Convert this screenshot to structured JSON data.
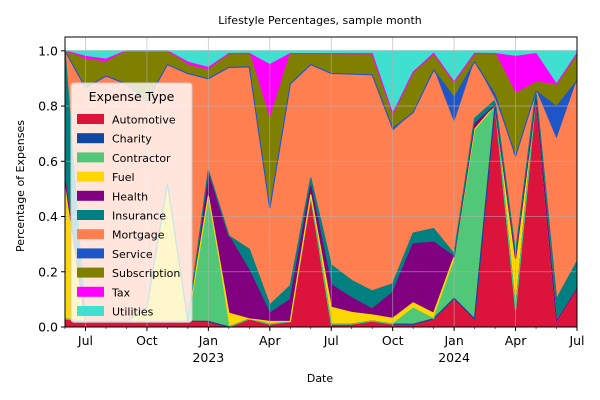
{
  "chart_data": {
    "type": "area",
    "stacked": true,
    "normalized": true,
    "title": "Lifestyle Percentages, sample month",
    "xlabel": "Date",
    "ylabel": "Percentage of Expenses",
    "ylim": [
      0,
      1.05
    ],
    "yticks": [
      "0.0",
      "0.2",
      "0.4",
      "0.6",
      "0.8",
      "1.0"
    ],
    "xlim": [
      "2022-06",
      "2024-07"
    ],
    "x": [
      "2022-06",
      "2022-07",
      "2022-08",
      "2022-09",
      "2022-10",
      "2022-11",
      "2022-12",
      "2023-01",
      "2023-02",
      "2023-03",
      "2023-04",
      "2023-05",
      "2023-06",
      "2023-07",
      "2023-08",
      "2023-09",
      "2023-10",
      "2023-11",
      "2023-12",
      "2024-01",
      "2024-02",
      "2024-03",
      "2024-04",
      "2024-05",
      "2024-06",
      "2024-07"
    ],
    "xticks": [
      {
        "at": "2022-07",
        "label": "Jul",
        "year": ""
      },
      {
        "at": "2022-10",
        "label": "Oct",
        "year": ""
      },
      {
        "at": "2023-01",
        "label": "Jan",
        "year": "2023"
      },
      {
        "at": "2023-04",
        "label": "Apr",
        "year": ""
      },
      {
        "at": "2023-07",
        "label": "Jul",
        "year": ""
      },
      {
        "at": "2023-10",
        "label": "Oct",
        "year": ""
      },
      {
        "at": "2024-01",
        "label": "Jan",
        "year": "2024"
      },
      {
        "at": "2024-04",
        "label": "Apr",
        "year": ""
      },
      {
        "at": "2024-07",
        "label": "Jul",
        "year": ""
      }
    ],
    "grid": true,
    "legend": {
      "title": "Expense Type",
      "placement": "center-left"
    },
    "series": [
      {
        "name": "Automotive",
        "color": "#dc143c",
        "values": [
          0.03,
          0.02,
          0.02,
          0.02,
          0.02,
          0.02,
          0.02,
          0.02,
          0.0,
          0.03,
          0.01,
          0.02,
          0.47,
          0.01,
          0.01,
          0.02,
          0.01,
          0.01,
          0.03,
          0.11,
          0.03,
          0.81,
          0.06,
          0.8,
          0.02,
          0.14
        ]
      },
      {
        "name": "Charity",
        "color": "#0d47a1",
        "values": [
          0.0,
          0.0,
          0.0,
          0.0,
          0.0,
          0.0,
          0.0,
          0.0,
          0.0,
          0.0,
          0.0,
          0.0,
          0.0,
          0.0,
          0.0,
          0.0,
          0.0,
          0.0,
          0.0,
          0.0,
          0.0,
          0.0,
          0.0,
          0.0,
          0.0,
          0.0
        ]
      },
      {
        "name": "Contractor",
        "color": "#50c878",
        "values": [
          0.0,
          0.0,
          0.0,
          0.0,
          0.0,
          0.0,
          0.0,
          0.45,
          0.0,
          0.0,
          0.0,
          0.0,
          0.0,
          0.0,
          0.0,
          0.0,
          0.0,
          0.06,
          0.0,
          0.14,
          0.7,
          0.0,
          0.0,
          0.0,
          0.0,
          0.0
        ]
      },
      {
        "name": "Fuel",
        "color": "#ffd700",
        "values": [
          0.52,
          0.0,
          0.0,
          0.0,
          0.05,
          0.5,
          0.0,
          0.0,
          0.05,
          0.0,
          0.01,
          0.0,
          0.01,
          0.06,
          0.04,
          0.02,
          0.02,
          0.02,
          0.02,
          0.02,
          0.0,
          0.0,
          0.18,
          0.0,
          0.0,
          0.0
        ]
      },
      {
        "name": "Health",
        "color": "#800080",
        "values": [
          0.0,
          0.0,
          0.0,
          0.0,
          0.0,
          0.0,
          0.0,
          0.09,
          0.28,
          0.18,
          0.03,
          0.08,
          0.03,
          0.08,
          0.05,
          0.02,
          0.09,
          0.22,
          0.26,
          0.0,
          0.02,
          0.0,
          0.0,
          0.0,
          0.0,
          0.0
        ]
      },
      {
        "name": "Insurance",
        "color": "#008080",
        "values": [
          0.48,
          0.0,
          0.0,
          0.0,
          0.0,
          0.0,
          0.0,
          0.0,
          0.0,
          0.08,
          0.03,
          0.05,
          0.03,
          0.07,
          0.06,
          0.06,
          0.03,
          0.04,
          0.05,
          0.01,
          0.02,
          0.02,
          0.02,
          0.02,
          0.08,
          0.1
        ]
      },
      {
        "name": "Mortgage",
        "color": "#ff7f50",
        "values": [
          0.0,
          0.82,
          0.88,
          0.86,
          0.73,
          0.43,
          0.87,
          0.33,
          0.61,
          0.68,
          0.35,
          0.73,
          0.41,
          0.68,
          0.71,
          0.72,
          0.53,
          0.45,
          0.58,
          0.5,
          0.21,
          0.0,
          0.34,
          0.0,
          0.57,
          0.66
        ]
      },
      {
        "name": "Service",
        "color": "#1e56c8",
        "values": [
          0.0,
          0.0,
          0.0,
          0.0,
          0.0,
          0.0,
          0.0,
          0.0,
          0.0,
          0.0,
          0.0,
          0.0,
          0.0,
          0.0,
          0.0,
          0.0,
          0.01,
          0.0,
          0.0,
          0.1,
          0.0,
          0.02,
          0.0,
          0.0,
          0.12,
          0.0
        ]
      },
      {
        "name": "Subscription",
        "color": "#808000",
        "values": [
          0.0,
          0.1,
          0.05,
          0.12,
          0.18,
          0.05,
          0.03,
          0.03,
          0.05,
          0.05,
          0.32,
          0.11,
          0.04,
          0.07,
          0.07,
          0.07,
          0.05,
          0.15,
          0.06,
          0.06,
          0.03,
          0.15,
          0.22,
          0.03,
          0.08,
          0.1
        ]
      },
      {
        "name": "Tax",
        "color": "#ff00ff",
        "values": [
          0.0,
          0.01,
          0.01,
          0.0,
          0.0,
          0.0,
          0.01,
          0.01,
          0.0,
          0.0,
          0.2,
          0.0,
          0.0,
          0.0,
          0.0,
          0.0,
          0.0,
          0.0,
          0.0,
          0.0,
          0.0,
          0.0,
          0.13,
          0.1,
          0.0,
          0.0
        ]
      },
      {
        "name": "Utilities",
        "color": "#40e0d0",
        "values": [
          0.0,
          0.02,
          0.03,
          0.0,
          0.0,
          0.0,
          0.04,
          0.06,
          0.01,
          0.01,
          0.05,
          0.01,
          0.01,
          0.01,
          0.01,
          0.01,
          0.22,
          0.08,
          0.01,
          0.12,
          0.01,
          0.01,
          0.02,
          0.01,
          0.12,
          0.01
        ]
      }
    ]
  }
}
